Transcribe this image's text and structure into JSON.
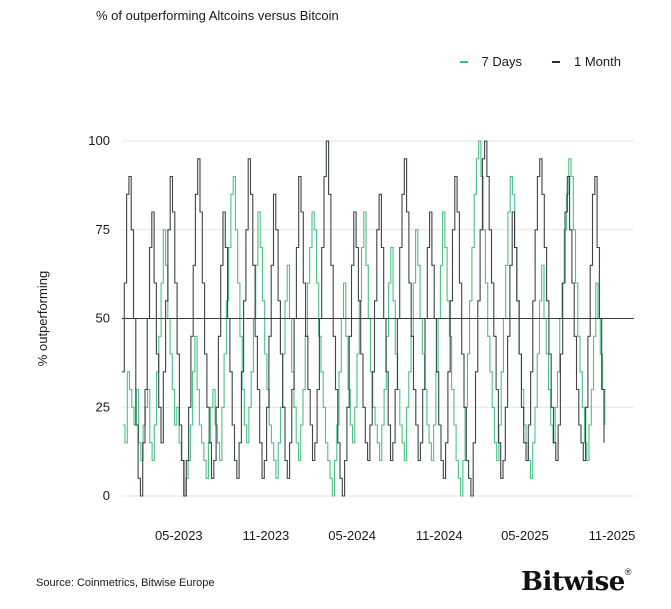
{
  "chart_data": {
    "type": "line",
    "title": "% of outperforming Altcoins versus Bitcoin",
    "ylabel": "% outperforming",
    "xlabel": "",
    "ylim": [
      0,
      100
    ],
    "yticks": [
      0,
      25,
      50,
      75,
      100
    ],
    "xticks": [
      "05-2023",
      "11-2023",
      "05-2024",
      "11-2024",
      "05-2025",
      "11-2025"
    ],
    "reference_line": 50,
    "grid": "horizontal",
    "legend_position": "top-right",
    "x_start": "2023-01-01",
    "x_end": "2025-10-15",
    "series": [
      {
        "name": "7 Days",
        "color": "#3fbf7f",
        "values": [
          20,
          15,
          35,
          30,
          25,
          20,
          30,
          15,
          10,
          20,
          25,
          30,
          15,
          10,
          20,
          35,
          45,
          60,
          75,
          65,
          50,
          40,
          30,
          20,
          25,
          15,
          10,
          0,
          5,
          10,
          20,
          35,
          45,
          30,
          20,
          15,
          10,
          5,
          15,
          25,
          30,
          20,
          15,
          10,
          25,
          40,
          55,
          70,
          85,
          90,
          75,
          60,
          45,
          30,
          20,
          15,
          25,
          35,
          50,
          65,
          80,
          70,
          55,
          40,
          30,
          20,
          15,
          10,
          5,
          15,
          25,
          40,
          55,
          65,
          50,
          35,
          25,
          15,
          10,
          20,
          30,
          45,
          60,
          70,
          80,
          75,
          60,
          45,
          35,
          25,
          15,
          10,
          5,
          0,
          10,
          20,
          35,
          50,
          60,
          45,
          30,
          20,
          15,
          25,
          40,
          55,
          70,
          80,
          65,
          50,
          35,
          25,
          20,
          15,
          10,
          20,
          30,
          45,
          60,
          70,
          55,
          40,
          30,
          20,
          15,
          10,
          25,
          35,
          45,
          60,
          75,
          65,
          50,
          40,
          30,
          20,
          15,
          10,
          20,
          35,
          50,
          65,
          80,
          70,
          55,
          45,
          30,
          20,
          10,
          5,
          0,
          10,
          25,
          40,
          55,
          70,
          85,
          95,
          100,
          90,
          75,
          60,
          45,
          35,
          25,
          15,
          10,
          20,
          35,
          50,
          65,
          80,
          90,
          85,
          70,
          55,
          40,
          30,
          20,
          15,
          10,
          5,
          15,
          25,
          40,
          55,
          65,
          50,
          40,
          30,
          20,
          15,
          25,
          35,
          50,
          60,
          75,
          85,
          95,
          90,
          75,
          60,
          45,
          35,
          25,
          15,
          10,
          20,
          30,
          45,
          60,
          50,
          40,
          30,
          20
        ]
      },
      {
        "name": "1 Month",
        "color": "#2a2f36",
        "values": [
          35,
          60,
          85,
          90,
          75,
          50,
          20,
          5,
          0,
          15,
          30,
          50,
          70,
          80,
          60,
          40,
          25,
          15,
          35,
          55,
          75,
          90,
          80,
          60,
          40,
          20,
          10,
          0,
          10,
          25,
          45,
          65,
          85,
          95,
          80,
          60,
          40,
          25,
          15,
          5,
          10,
          25,
          45,
          65,
          80,
          70,
          50,
          35,
          20,
          10,
          5,
          15,
          35,
          55,
          75,
          95,
          85,
          65,
          45,
          30,
          15,
          5,
          10,
          25,
          45,
          65,
          85,
          75,
          55,
          40,
          25,
          10,
          5,
          15,
          30,
          50,
          70,
          90,
          80,
          60,
          45,
          30,
          20,
          10,
          15,
          30,
          50,
          70,
          90,
          100,
          85,
          65,
          45,
          30,
          15,
          5,
          0,
          10,
          25,
          45,
          65,
          80,
          70,
          55,
          40,
          25,
          15,
          10,
          20,
          35,
          55,
          75,
          85,
          70,
          50,
          35,
          20,
          10,
          15,
          30,
          50,
          70,
          85,
          95,
          80,
          60,
          45,
          30,
          20,
          10,
          15,
          30,
          50,
          70,
          80,
          65,
          50,
          35,
          20,
          10,
          5,
          15,
          35,
          55,
          75,
          90,
          80,
          60,
          40,
          25,
          10,
          5,
          0,
          15,
          35,
          55,
          75,
          95,
          100,
          90,
          75,
          60,
          45,
          30,
          15,
          5,
          10,
          25,
          45,
          65,
          80,
          70,
          55,
          40,
          25,
          15,
          10,
          20,
          35,
          55,
          75,
          90,
          95,
          85,
          70,
          55,
          40,
          25,
          15,
          10,
          20,
          40,
          60,
          80,
          90,
          75,
          60,
          45,
          30,
          20,
          15,
          10,
          25,
          45,
          65,
          85,
          90,
          70,
          50,
          30,
          15
        ]
      }
    ]
  },
  "source": "Source: Coinmetrics, Bitwise Europe",
  "logo": {
    "text": "Bitwise",
    "mark": "®"
  }
}
